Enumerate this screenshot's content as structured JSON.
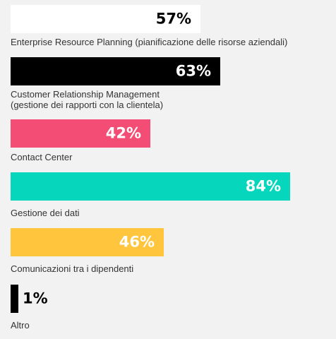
{
  "chart_data": {
    "type": "bar",
    "orientation": "horizontal",
    "categories": [
      "Enterprise Resource Planning (pianificazione delle risorse aziendali)",
      "Customer Relationship Management\n(gestione dei rapporti con la clientela)",
      "Contact Center",
      "Gestione dei dati",
      "Comunicazioni tra i dipendenti",
      "Altro"
    ],
    "values": [
      57,
      63,
      42,
      84,
      46,
      1
    ],
    "value_labels": [
      "57%",
      "63%",
      "42%",
      "84%",
      "46%",
      "1%"
    ],
    "unit": "%",
    "xlim": [
      0,
      100
    ],
    "grid": false,
    "legend": "none",
    "colors": [
      "#ffffff",
      "#000000",
      "#f34d75",
      "#06d6bc",
      "#ffc53d",
      "#000000"
    ],
    "value_label_colors": [
      "#000000",
      "#ffffff",
      "#ffffff",
      "#ffffff",
      "#ffffff",
      "#000000"
    ]
  }
}
